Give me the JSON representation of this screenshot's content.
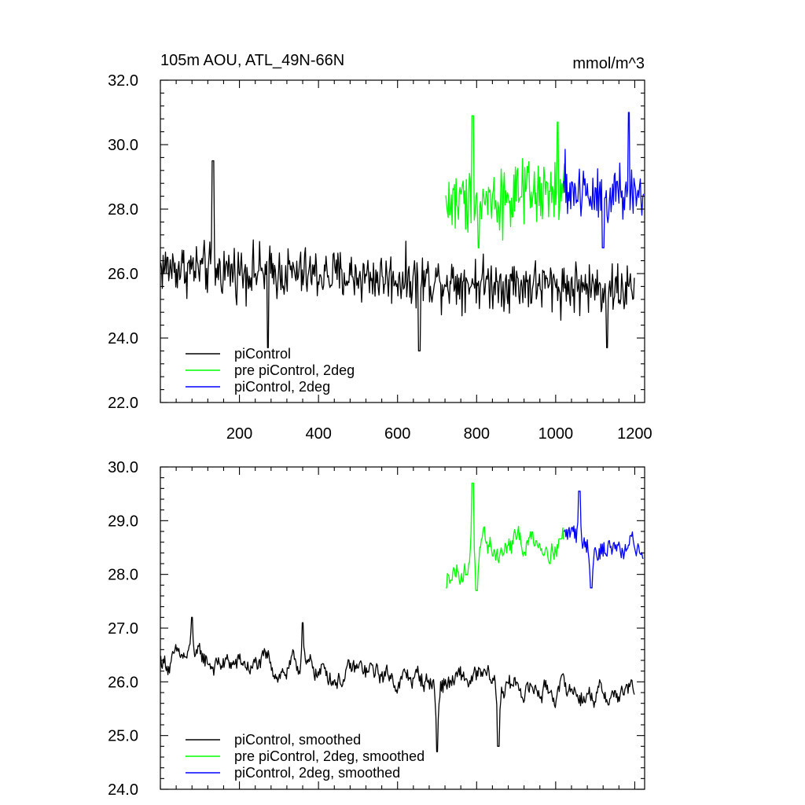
{
  "chart_data": [
    {
      "type": "line",
      "title_left": "105m AOU, ATL_49N-66N",
      "title_right": "mmol/m^3",
      "xlim": [
        0,
        1225
      ],
      "ylim": [
        22.0,
        32.0
      ],
      "x_ticks": [
        200,
        400,
        600,
        800,
        1000,
        1200
      ],
      "x_tick_labels": [
        "200",
        "400",
        "600",
        "800",
        "1000",
        "1200"
      ],
      "y_ticks": [
        22.0,
        24.0,
        26.0,
        28.0,
        30.0,
        32.0
      ],
      "y_tick_labels": [
        "22.0",
        "24.0",
        "26.0",
        "28.0",
        "30.0",
        "32.0"
      ],
      "legend_position": "bottom-left",
      "series": [
        {
          "name": "piControl",
          "color": "#000000",
          "x_start": 1,
          "x_end": 1200,
          "baseline_start": 26.2,
          "baseline_end": 25.5,
          "amplitude": 0.75,
          "peaks": [
            [
              133,
              29.5
            ],
            [
              272,
              23.7
            ],
            [
              655,
              23.6
            ],
            [
              1130,
              23.7
            ]
          ]
        },
        {
          "name": "pre piControl, 2deg",
          "color": "#00ff00",
          "x_start": 722,
          "x_end": 1025,
          "baseline_start": 28.2,
          "baseline_end": 28.5,
          "amplitude": 0.95,
          "peaks": [
            [
              790,
              30.9
            ],
            [
              1005,
              30.7
            ],
            [
              805,
              26.8
            ]
          ]
        },
        {
          "name": "piControl, 2deg",
          "color": "#0000ff",
          "x_start": 1020,
          "x_end": 1222,
          "baseline_start": 28.6,
          "baseline_end": 28.4,
          "amplitude": 0.95,
          "peaks": [
            [
              1185,
              31.0
            ],
            [
              1120,
              26.8
            ]
          ]
        }
      ]
    },
    {
      "type": "line",
      "xlim": [
        0,
        1225
      ],
      "ylim": [
        24.0,
        30.0
      ],
      "x_ticks": [
        200,
        400,
        600,
        800,
        1000,
        1200
      ],
      "y_ticks": [
        24.0,
        25.0,
        26.0,
        27.0,
        28.0,
        29.0,
        30.0
      ],
      "y_tick_labels": [
        "24.0",
        "25.0",
        "26.0",
        "27.0",
        "28.0",
        "29.0",
        "30.0"
      ],
      "legend_position": "bottom-left",
      "series": [
        {
          "name": "piControl, smoothed",
          "color": "#000000",
          "x_start": 1,
          "x_end": 1200,
          "baseline_start": 26.4,
          "baseline_end": 25.75,
          "amplitude": 0.3,
          "peaks": [
            [
              80,
              27.2
            ],
            [
              360,
              27.1
            ],
            [
              700,
              24.7
            ],
            [
              855,
              24.8
            ]
          ]
        },
        {
          "name": "pre piControl, 2deg, smoothed",
          "color": "#00ff00",
          "x_start": 722,
          "x_end": 1020,
          "baseline_start": 28.1,
          "baseline_end": 28.8,
          "amplitude": 0.35,
          "peaks": [
            [
              790,
              29.7
            ],
            [
              722,
              27.75
            ],
            [
              800,
              27.7
            ]
          ]
        },
        {
          "name": "piControl, 2deg, smoothed",
          "color": "#0000ff",
          "x_start": 1020,
          "x_end": 1222,
          "baseline_start": 28.7,
          "baseline_end": 28.5,
          "amplitude": 0.35,
          "peaks": [
            [
              1060,
              29.55
            ],
            [
              1090,
              27.75
            ],
            [
              1222,
              28.3
            ]
          ]
        }
      ]
    }
  ]
}
